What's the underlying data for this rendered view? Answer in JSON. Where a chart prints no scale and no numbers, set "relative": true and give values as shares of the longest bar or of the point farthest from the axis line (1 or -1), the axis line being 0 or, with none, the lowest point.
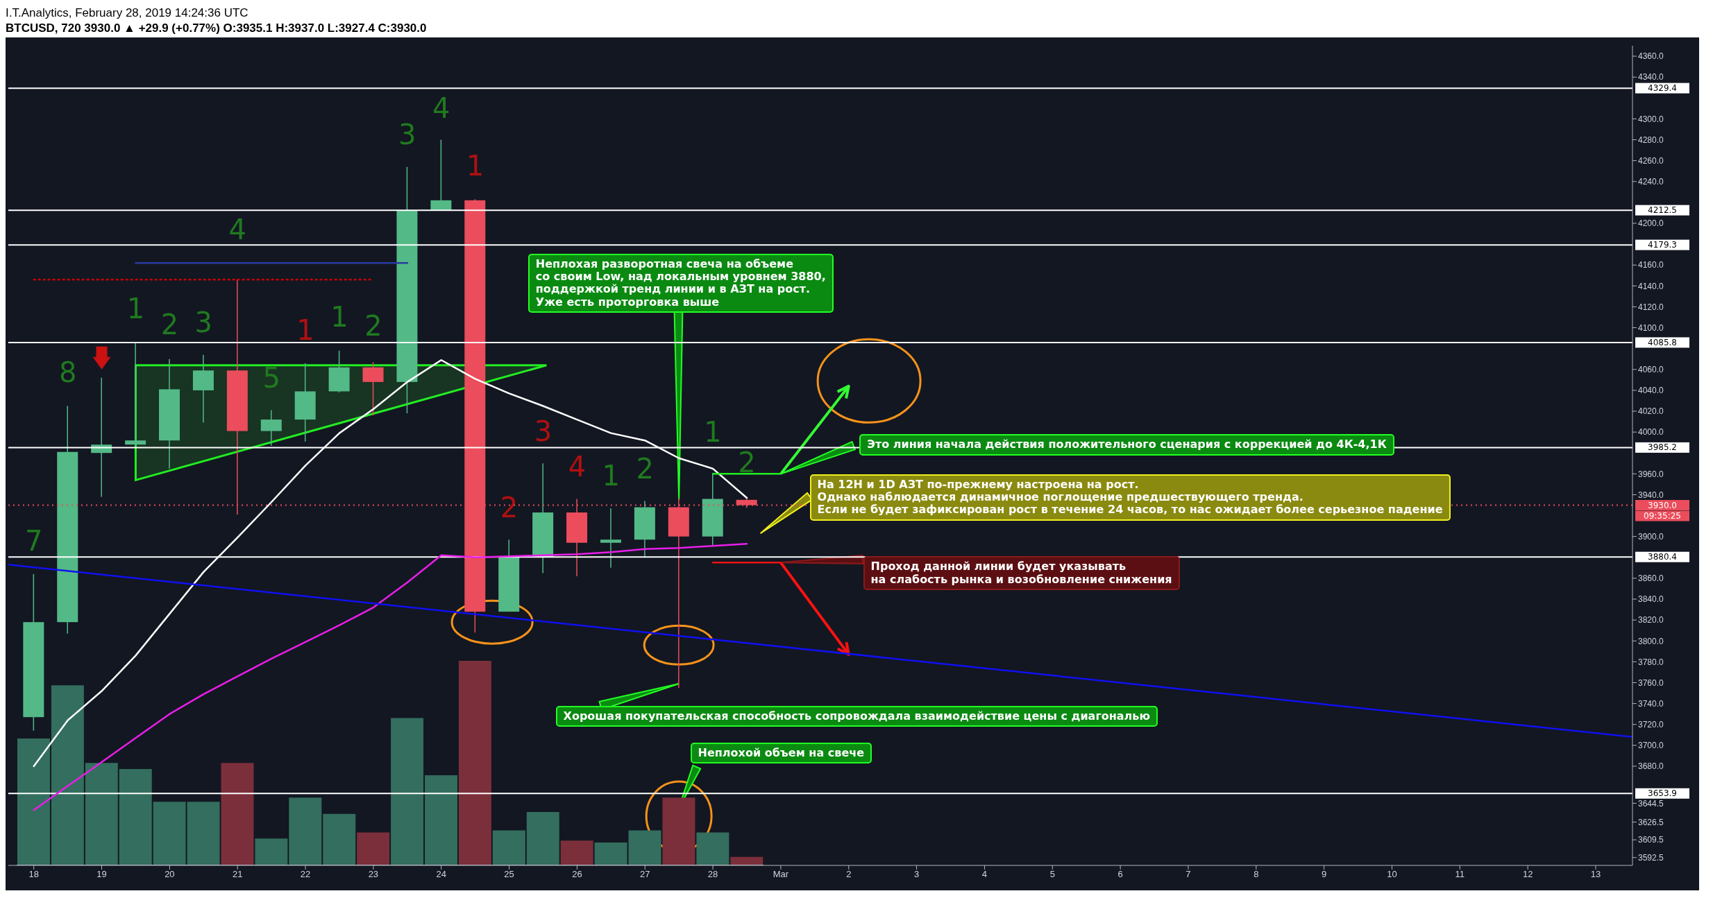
{
  "chart_data": [
    {
      "type": "candlestick",
      "title": "I.T.Analytics, February 28, 2019 14:24:36 UTC",
      "subtitle": "BTCUSD, 720  3930.0 ▲ +29.9 (+0.77%) O:3935.1 H:3937.0 L:3927.4 C:3930.0",
      "x": [
        "2019-02-18T00:00",
        "2019-02-18T12:00",
        "2019-02-19T00:00",
        "2019-02-19T12:00",
        "2019-02-20T00:00",
        "2019-02-20T12:00",
        "2019-02-21T00:00",
        "2019-02-21T12:00",
        "2019-02-22T00:00",
        "2019-02-22T12:00",
        "2019-02-23T00:00",
        "2019-02-23T12:00",
        "2019-02-24T00:00",
        "2019-02-24T12:00",
        "2019-02-25T00:00",
        "2019-02-25T12:00",
        "2019-02-26T00:00",
        "2019-02-26T12:00",
        "2019-02-27T00:00",
        "2019-02-27T12:00",
        "2019-02-28T00:00",
        "2019-02-28T12:00"
      ],
      "ohlc": [
        [
          3727,
          3864,
          3714,
          3818
        ],
        [
          3818,
          4025,
          3807,
          3981
        ],
        [
          3980,
          4052,
          3938,
          3988
        ],
        [
          3988,
          4086,
          3987,
          3992
        ],
        [
          3992,
          4070,
          3965,
          4041
        ],
        [
          4040,
          4074,
          4009,
          4059
        ],
        [
          4059,
          4146,
          3921,
          4001
        ],
        [
          4001,
          4021,
          3987,
          4012
        ],
        [
          4012,
          4066,
          3991,
          4039
        ],
        [
          4039,
          4078,
          4038,
          4062
        ],
        [
          4062,
          4067,
          4016,
          4048
        ],
        [
          4048,
          4254,
          4018,
          4212.5
        ],
        [
          4212.5,
          4280,
          4212,
          4222
        ],
        [
          4222,
          4223,
          3808,
          3828
        ],
        [
          3828,
          3897,
          3828,
          3880
        ],
        [
          3880,
          3970,
          3865,
          3923
        ],
        [
          3923,
          3936,
          3862,
          3894
        ],
        [
          3894,
          3927,
          3870,
          3897
        ],
        [
          3897,
          3934,
          3880,
          3928
        ],
        [
          3928,
          3937,
          3755,
          3900
        ],
        [
          3900,
          3960,
          3892,
          3936
        ],
        [
          3935.1,
          3937.0,
          3927.4,
          3930.0
        ]
      ],
      "colors": [
        "#53b987",
        "#53b987",
        "#53b987",
        "#53b987",
        "#53b987",
        "#53b987",
        "#eb4d5c",
        "#53b987",
        "#53b987",
        "#53b987",
        "#eb4d5c",
        "#53b987",
        "#53b987",
        "#eb4d5c",
        "#53b987",
        "#53b987",
        "#eb4d5c",
        "#53b987",
        "#53b987",
        "#eb4d5c",
        "#53b987",
        "#eb4d5c"
      ],
      "xlim": [
        "2019-02-17T15:00",
        "2019-03-13T13:00"
      ],
      "xticks": [
        {
          "value": "2019-02-18",
          "label": "18"
        },
        {
          "value": "2019-02-19",
          "label": "19"
        },
        {
          "value": "2019-02-20",
          "label": "20"
        },
        {
          "value": "2019-02-21",
          "label": "21"
        },
        {
          "value": "2019-02-22",
          "label": "22"
        },
        {
          "value": "2019-02-23",
          "label": "23"
        },
        {
          "value": "2019-02-24",
          "label": "24"
        },
        {
          "value": "2019-02-25",
          "label": "25"
        },
        {
          "value": "2019-02-26",
          "label": "26"
        },
        {
          "value": "2019-02-27",
          "label": "27"
        },
        {
          "value": "2019-02-28",
          "label": "28"
        },
        {
          "value": "2019-03-01",
          "label": "Mar"
        },
        {
          "value": "2019-03-02",
          "label": "2"
        },
        {
          "value": "2019-03-03",
          "label": "3"
        },
        {
          "value": "2019-03-04",
          "label": "4"
        },
        {
          "value": "2019-03-05",
          "label": "5"
        },
        {
          "value": "2019-03-06",
          "label": "6"
        },
        {
          "value": "2019-03-07",
          "label": "7"
        },
        {
          "value": "2019-03-08",
          "label": "8"
        },
        {
          "value": "2019-03-09",
          "label": "9"
        },
        {
          "value": "2019-03-10",
          "label": "10"
        },
        {
          "value": "2019-03-11",
          "label": "11"
        },
        {
          "value": "2019-03-12",
          "label": "12"
        },
        {
          "value": "2019-03-13",
          "label": "13"
        }
      ],
      "ylim": [
        3585,
        4370
      ],
      "yticks": [
        {
          "value": 3592.5,
          "label": "3592.5"
        },
        {
          "value": 3609.5,
          "label": "3609.5"
        },
        {
          "value": 3626.5,
          "label": "3626.5"
        },
        {
          "value": 3644.5,
          "label": "3644.5"
        },
        {
          "value": 3680,
          "label": "3680.0"
        },
        {
          "value": 3700,
          "label": "3700.0"
        },
        {
          "value": 3720,
          "label": "3720.0"
        },
        {
          "value": 3740,
          "label": "3740.0"
        },
        {
          "value": 3760,
          "label": "3760.0"
        },
        {
          "value": 3780,
          "label": "3780.0"
        },
        {
          "value": 3800,
          "label": "3800.0"
        },
        {
          "value": 3820,
          "label": "3820.0"
        },
        {
          "value": 3840,
          "label": "3840.0"
        },
        {
          "value": 3860,
          "label": "3860.0"
        },
        {
          "value": 3900,
          "label": "3900.0"
        },
        {
          "value": 3940,
          "label": "3940.0"
        },
        {
          "value": 3960,
          "label": "3960.0"
        },
        {
          "value": 4000,
          "label": "4000.0"
        },
        {
          "value": 4020,
          "label": "4020.0"
        },
        {
          "value": 4040,
          "label": "4040.0"
        },
        {
          "value": 4060,
          "label": "4060.0"
        },
        {
          "value": 4100,
          "label": "4100.0"
        },
        {
          "value": 4120,
          "label": "4120.0"
        },
        {
          "value": 4140,
          "label": "4140.0"
        },
        {
          "value": 4160,
          "label": "4160.0"
        },
        {
          "value": 4200,
          "label": "4200.0"
        },
        {
          "value": 4240,
          "label": "4240.0"
        },
        {
          "value": 4260,
          "label": "4260.0"
        },
        {
          "value": 4280,
          "label": "4280.0"
        },
        {
          "value": 4300,
          "label": "4300.0"
        },
        {
          "value": 4340,
          "label": "4340.0"
        },
        {
          "value": 4360,
          "label": "4360.0"
        }
      ],
      "series": [
        {
          "type": "line",
          "color": "#ffffff",
          "values": [
            3680,
            3724,
            3752,
            3786,
            3826,
            3866,
            3899,
            3933,
            3968,
            3999,
            4022,
            4048,
            4069,
            4051,
            4037,
            4025,
            4012,
            3999,
            3992,
            3975,
            3965,
            3937
          ]
        },
        {
          "type": "line",
          "color": "#e91ee9",
          "values": [
            3638,
            3661,
            3684,
            3707,
            3730,
            3749,
            3766,
            3783,
            3799,
            3815,
            3832,
            3856,
            3882,
            3880,
            3881,
            3882,
            3883,
            3885,
            3888,
            3889,
            3891,
            3893
          ]
        },
        {
          "type": "line",
          "color": "#1010f0",
          "x": [
            "2019-02-17T15:00",
            "2019-03-13T13:00"
          ],
          "values": [
            3873,
            3708
          ]
        },
        {
          "type": "line",
          "color": "#cc0000",
          "line_style": "dotted",
          "x": [
            "2019-02-18T00:00",
            "2019-02-23T00:00"
          ],
          "values": [
            4146,
            4146
          ]
        },
        {
          "type": "line",
          "color": "#2a3aa0",
          "x": [
            "2019-02-19T12:00",
            "2019-02-23T12:00"
          ],
          "values": [
            4162,
            4162
          ]
        },
        {
          "type": "line",
          "color": "#22ee22",
          "x": [
            "2019-02-28T00:00",
            "2019-03-01T00:00"
          ],
          "values": [
            3960,
            3960
          ]
        },
        {
          "type": "line",
          "color": "#ee1111",
          "x": [
            "2019-02-28T00:00",
            "2019-03-01T00:00"
          ],
          "values": [
            3875,
            3875
          ]
        }
      ],
      "ref_lines": [
        {
          "axis": "y",
          "value": 4329.4,
          "label": "4329.4",
          "color": "#ffffff"
        },
        {
          "axis": "y",
          "value": 4212.5,
          "label": "4212.5",
          "color": "#ffffff"
        },
        {
          "axis": "y",
          "value": 4179.3,
          "label": "4179.3",
          "color": "#ffffff"
        },
        {
          "axis": "y",
          "value": 4085.8,
          "label": "4085.8",
          "color": "#ffffff"
        },
        {
          "axis": "y",
          "value": 3985.2,
          "label": "3985.2",
          "color": "#ffffff"
        },
        {
          "axis": "y",
          "value": 3930.0,
          "label": "3930.0",
          "color": "#eb4d5c",
          "line_style": "dotted"
        },
        {
          "axis": "y",
          "value": 3880.4,
          "label": "3880.4",
          "color": "#ffffff"
        },
        {
          "axis": "y",
          "value": 3653.9,
          "label": "3653.9",
          "color": "#ffffff"
        }
      ],
      "annotations": [
        "Неплохая разворотная свеча на объеме\nсо своим Low, над локальным уровнем 3880,\nподдержкой тренд линии и в АЗТ на рост.\nУже есть проторговка выше",
        "Это линия начала действия положительного сценария с коррекцией до 4К-4,1К",
        "На 12H и 1D АЗТ по-прежнему настроена на рост.\nОднако наблюдается динамичное поглощение предшествующего тренда.\nЕсли не будет зафиксирован рост в течение 24 часов, то нас ожидает более серьезное падение",
        "Проход данной линии будет указывать\nна слабость рынка и возобновление снижения",
        "Хорошая покупательская способность сопровождала взаимодействие цены с диагональю",
        "Неплохой объем на свече",
        "09:35:25",
        "7",
        "8",
        "1",
        "2",
        "3",
        "4",
        "5",
        "1",
        "1",
        "2",
        "3",
        "4",
        "1",
        "2",
        "3",
        "4",
        "1",
        "2",
        "1",
        "2"
      ]
    },
    {
      "type": "bar",
      "relative": true,
      "categories": [
        null,
        null,
        null,
        null,
        null,
        null,
        null,
        null,
        null,
        null,
        null,
        null,
        null,
        null,
        null,
        null,
        null,
        null,
        null,
        null,
        null,
        null
      ],
      "values": [
        0.62,
        0.88,
        0.5,
        0.47,
        0.31,
        0.31,
        0.5,
        0.13,
        0.33,
        0.25,
        0.16,
        0.72,
        0.44,
        1,
        0.17,
        0.26,
        0.12,
        0.11,
        0.17,
        0.33,
        0.16,
        0.04
      ],
      "colors": [
        "#336e5e",
        "#336e5e",
        "#336e5e",
        "#336e5e",
        "#336e5e",
        "#336e5e",
        "#7b2f3b",
        "#336e5e",
        "#336e5e",
        "#336e5e",
        "#7b2f3b",
        "#336e5e",
        "#336e5e",
        "#7b2f3b",
        "#336e5e",
        "#336e5e",
        "#7b2f3b",
        "#336e5e",
        "#336e5e",
        "#7b2f3b",
        "#336e5e",
        "#7b2f3b"
      ]
    }
  ]
}
